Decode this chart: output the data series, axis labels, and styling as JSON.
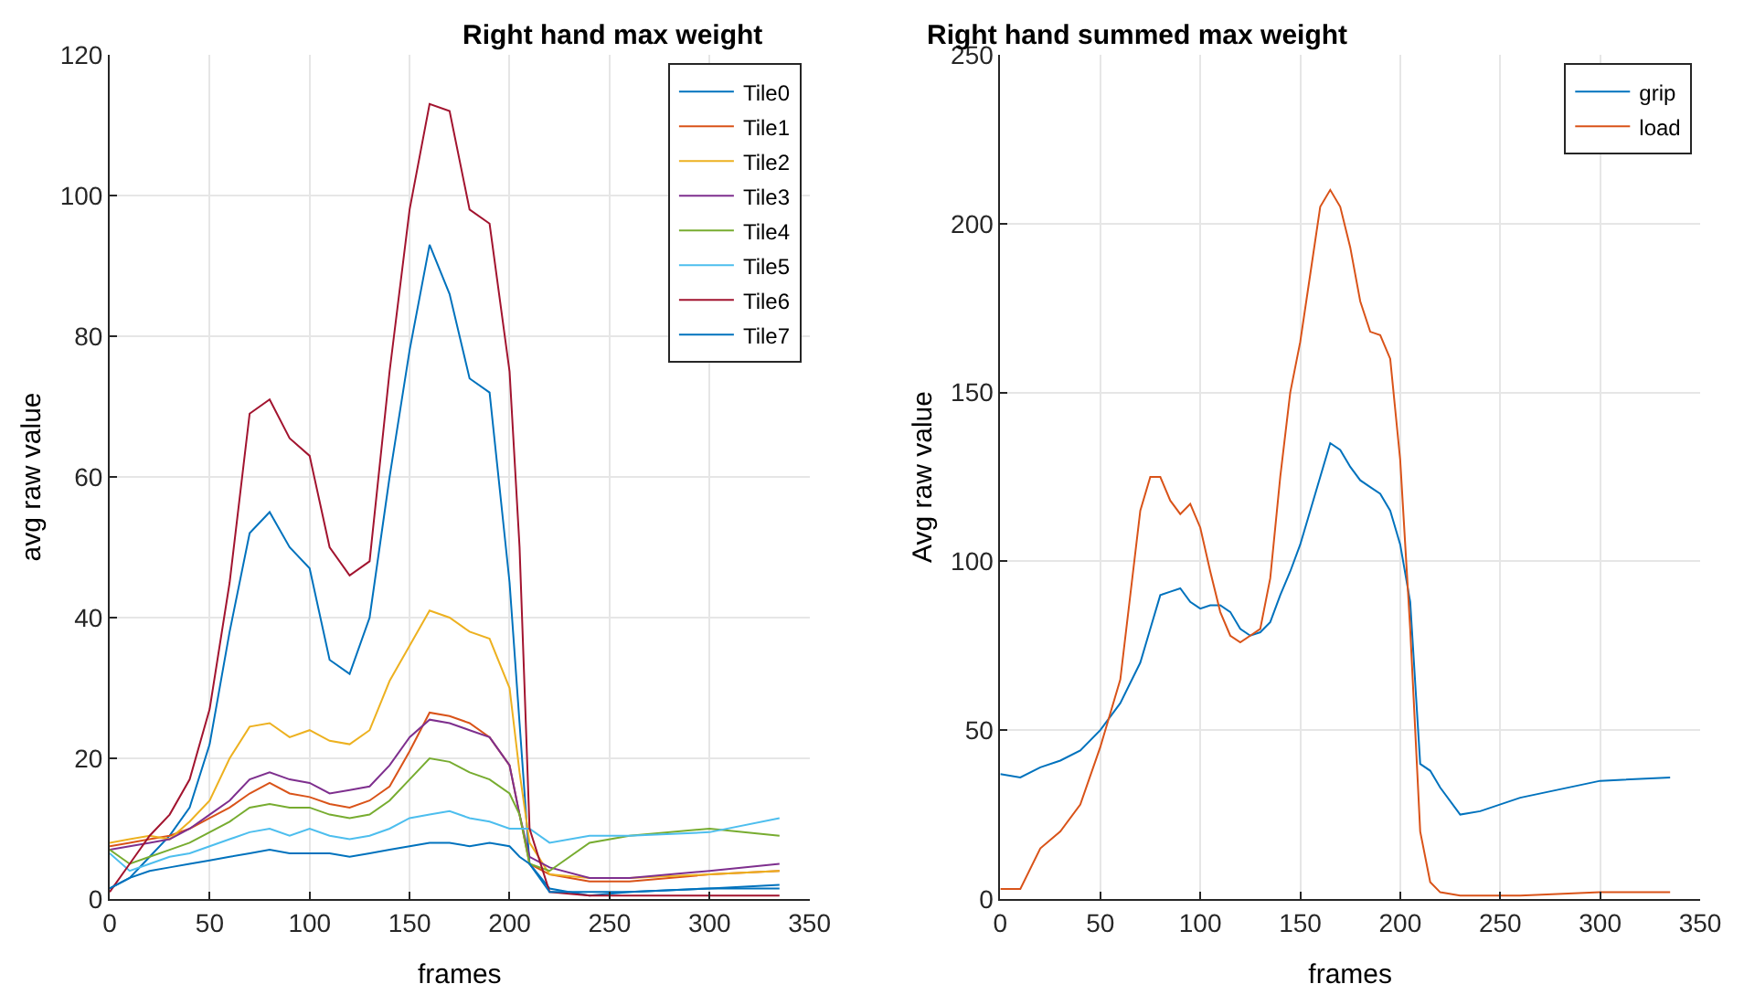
{
  "chart_data": [
    {
      "type": "line",
      "title": "Right hand max weight",
      "xlabel": "frames",
      "ylabel": "avg raw value",
      "xlim": [
        0,
        350
      ],
      "xticks": [
        0,
        50,
        100,
        150,
        200,
        250,
        300,
        350
      ],
      "ylim": [
        0,
        120
      ],
      "yticks": [
        0,
        20,
        40,
        60,
        80,
        100,
        120
      ],
      "grid": true,
      "legend": "top right",
      "marker": "none",
      "line_style": "solid",
      "x": [
        0,
        10,
        20,
        30,
        40,
        50,
        60,
        70,
        80,
        90,
        100,
        110,
        120,
        130,
        140,
        150,
        160,
        170,
        180,
        190,
        200,
        205,
        210,
        220,
        240,
        260,
        300,
        335
      ],
      "series": [
        {
          "name": "Tile0",
          "color": "#0072bd",
          "values": [
            1.5,
            3,
            6,
            9,
            13,
            22,
            38,
            52,
            55,
            50,
            47,
            34,
            32,
            40,
            60,
            78,
            93,
            86,
            74,
            72,
            45,
            25,
            5,
            1.5,
            0.5,
            1,
            1.5,
            1.5
          ]
        },
        {
          "name": "Tile1",
          "color": "#d95319",
          "values": [
            7.5,
            8,
            8.5,
            9,
            10,
            11.5,
            13,
            15,
            16.5,
            15,
            14.5,
            13.5,
            13,
            14,
            16,
            21,
            26.5,
            26,
            25,
            23,
            19,
            12,
            5,
            3.5,
            2.5,
            2.5,
            3.5,
            4
          ]
        },
        {
          "name": "Tile2",
          "color": "#edb120",
          "values": [
            8,
            8.5,
            9,
            8.5,
            11,
            14,
            20,
            24.5,
            25,
            23,
            24,
            22.5,
            22,
            24,
            31,
            36,
            41,
            40,
            38,
            37,
            30,
            18,
            8,
            3.5,
            3,
            3,
            3.5,
            4
          ]
        },
        {
          "name": "Tile3",
          "color": "#7e2f8e",
          "values": [
            7,
            7.5,
            8,
            8.5,
            10,
            12,
            14,
            17,
            18,
            17,
            16.5,
            15,
            15.5,
            16,
            19,
            23,
            25.5,
            25,
            24,
            23,
            19,
            12,
            6,
            4.5,
            3,
            3,
            4,
            5
          ]
        },
        {
          "name": "Tile4",
          "color": "#77ac30",
          "values": [
            7,
            5,
            6,
            7,
            8,
            9.5,
            11,
            13,
            13.5,
            13,
            13,
            12,
            11.5,
            12,
            14,
            17,
            20,
            19.5,
            18,
            17,
            15,
            12,
            5,
            4,
            8,
            9,
            10,
            9
          ]
        },
        {
          "name": "Tile5",
          "color": "#4dbeee",
          "values": [
            6.5,
            4,
            5,
            6,
            6.5,
            7.5,
            8.5,
            9.5,
            10,
            9,
            10,
            9,
            8.5,
            9,
            10,
            11.5,
            12,
            12.5,
            11.5,
            11,
            10,
            10,
            10,
            8,
            9,
            9,
            9.5,
            11.5
          ]
        },
        {
          "name": "Tile6",
          "color": "#a2142f",
          "values": [
            1,
            5,
            9,
            12,
            17,
            27,
            45,
            69,
            71,
            65.5,
            63,
            50,
            46,
            48,
            75,
            98,
            113,
            112,
            98,
            96,
            75,
            50,
            10,
            1,
            0.5,
            0.5,
            0.5,
            0.5
          ]
        },
        {
          "name": "Tile7",
          "color": "#0072bd",
          "values": [
            1.5,
            3,
            4,
            4.5,
            5,
            5.5,
            6,
            6.5,
            7,
            6.5,
            6.5,
            6.5,
            6,
            6.5,
            7,
            7.5,
            8,
            8,
            7.5,
            8,
            7.5,
            6,
            5,
            1,
            1,
            1,
            1.5,
            2
          ]
        }
      ]
    },
    {
      "type": "line",
      "title": "Right hand summed max weight",
      "xlabel": "frames",
      "ylabel": "Avg raw value",
      "xlim": [
        0,
        350
      ],
      "xticks": [
        0,
        50,
        100,
        150,
        200,
        250,
        300,
        350
      ],
      "ylim": [
        0,
        250
      ],
      "yticks": [
        0,
        50,
        100,
        150,
        200,
        250
      ],
      "grid": true,
      "legend": "top right",
      "marker": "none",
      "line_style": "solid",
      "x": [
        0,
        10,
        20,
        30,
        40,
        50,
        60,
        70,
        75,
        80,
        85,
        90,
        95,
        100,
        105,
        110,
        115,
        120,
        125,
        130,
        135,
        140,
        145,
        150,
        155,
        160,
        165,
        170,
        175,
        180,
        185,
        190,
        195,
        200,
        205,
        210,
        215,
        220,
        230,
        240,
        260,
        300,
        335
      ],
      "series": [
        {
          "name": "grip",
          "color": "#0072bd",
          "values": [
            37,
            36,
            39,
            41,
            44,
            50,
            58,
            70,
            80,
            90,
            91,
            92,
            88,
            86,
            87,
            87,
            85,
            80,
            78,
            79,
            82,
            90,
            97,
            105,
            115,
            125,
            135,
            133,
            128,
            124,
            122,
            120,
            115,
            105,
            88,
            40,
            38,
            33,
            25,
            26,
            30,
            35,
            36
          ]
        },
        {
          "name": "load",
          "color": "#d95319",
          "values": [
            3,
            3,
            15,
            20,
            28,
            45,
            65,
            115,
            125,
            125,
            118,
            114,
            117,
            110,
            97,
            85,
            78,
            76,
            78,
            80,
            95,
            125,
            150,
            165,
            185,
            205,
            210,
            205,
            193,
            177,
            168,
            167,
            160,
            130,
            80,
            20,
            5,
            2,
            1,
            1,
            1,
            2,
            2
          ]
        }
      ]
    }
  ]
}
